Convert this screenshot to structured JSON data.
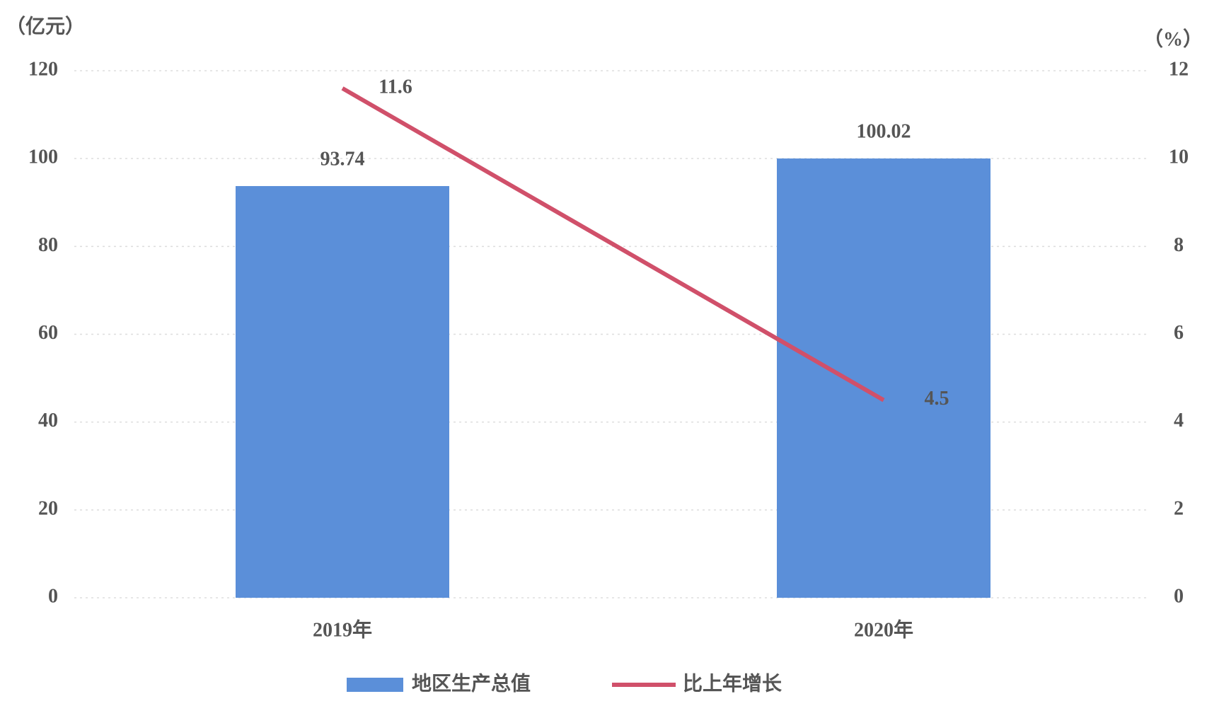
{
  "chart_data": {
    "type": "combo",
    "y_label": "（亿元）",
    "y2_label": "（%）",
    "categories": [
      "2019年",
      "2020年"
    ],
    "series": [
      {
        "name": "地区生产总值",
        "type": "bar",
        "color": "#5b8fd9",
        "values": [
          93.74,
          100.02
        ]
      },
      {
        "name": "比上年增长",
        "type": "line",
        "axis": "y2",
        "color": "#d0506a",
        "values": [
          11.6,
          4.5
        ]
      }
    ],
    "ylim": [
      0,
      120
    ],
    "yticks": [
      0,
      20,
      40,
      60,
      80,
      100,
      120
    ],
    "y2lim": [
      0,
      12
    ],
    "y2ticks": [
      0,
      2,
      4,
      6,
      8,
      10,
      12
    ],
    "grid": true
  }
}
